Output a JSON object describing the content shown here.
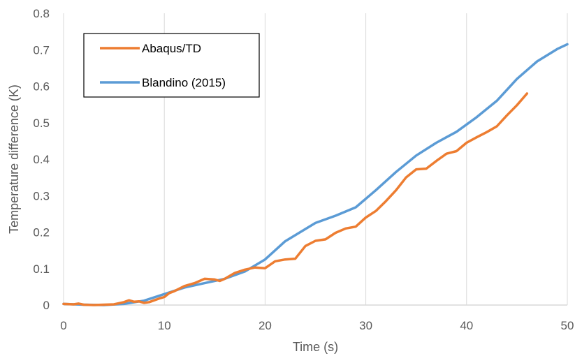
{
  "chart_data": {
    "type": "line",
    "title": "",
    "xlabel": "Time (s)",
    "ylabel": "Temperature difference (K)",
    "xlim": [
      0,
      50
    ],
    "ylim": [
      0,
      0.8
    ],
    "x_ticks": [
      "0",
      "10",
      "20",
      "30",
      "40",
      "50"
    ],
    "y_ticks": [
      "0",
      "0.1",
      "0.2",
      "0.3",
      "0.4",
      "0.5",
      "0.6",
      "0.7",
      "0.8"
    ],
    "grid": "vertical gridlines only",
    "legend_position": "top-left, boxed",
    "series": [
      {
        "name": "Abaqus/TD",
        "color": "#ED7D31",
        "x": [
          0,
          1,
          1.5,
          2,
          3,
          4,
          5,
          6,
          6.5,
          7,
          7.5,
          8,
          8.5,
          9,
          9.5,
          10,
          10.5,
          11,
          12,
          13,
          14,
          15,
          15.5,
          16,
          17,
          18,
          19,
          20,
          21,
          22,
          23,
          24,
          25,
          26,
          27,
          28,
          29,
          30,
          31,
          32,
          33,
          34,
          35,
          36,
          37,
          38,
          39,
          40,
          41,
          42,
          43,
          44,
          45,
          46
        ],
        "y": [
          0.003,
          0.002,
          0.004,
          0.001,
          0.0,
          0.001,
          0.002,
          0.008,
          0.013,
          0.009,
          0.01,
          0.006,
          0.008,
          0.013,
          0.018,
          0.022,
          0.033,
          0.038,
          0.052,
          0.06,
          0.072,
          0.07,
          0.066,
          0.072,
          0.088,
          0.097,
          0.103,
          0.101,
          0.12,
          0.125,
          0.127,
          0.162,
          0.176,
          0.18,
          0.198,
          0.21,
          0.215,
          0.24,
          0.258,
          0.285,
          0.315,
          0.35,
          0.372,
          0.374,
          0.395,
          0.415,
          0.422,
          0.445,
          0.46,
          0.474,
          0.49,
          0.52,
          0.548,
          0.58
        ]
      },
      {
        "name": "Blandino (2015)",
        "color": "#5B9BD5",
        "x": [
          0,
          2,
          4,
          6,
          8,
          10,
          12,
          14,
          16,
          18,
          20,
          22,
          25,
          27,
          29,
          31,
          33,
          35,
          37,
          39,
          41,
          43,
          45,
          47,
          49,
          50
        ],
        "y": [
          0.003,
          0.001,
          0.0,
          0.003,
          0.012,
          0.03,
          0.048,
          0.06,
          0.072,
          0.092,
          0.125,
          0.175,
          0.225,
          0.245,
          0.268,
          0.315,
          0.365,
          0.41,
          0.445,
          0.475,
          0.515,
          0.56,
          0.62,
          0.668,
          0.702,
          0.715
        ]
      }
    ]
  }
}
